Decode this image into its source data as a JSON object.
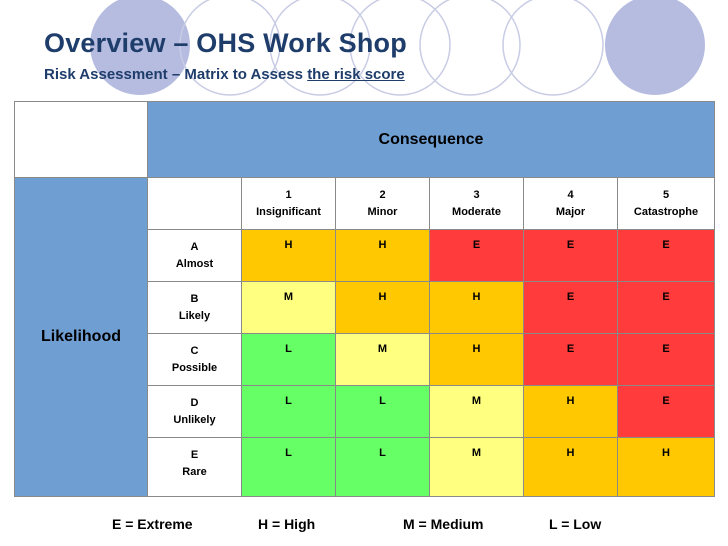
{
  "title": "Overview – OHS Work Shop",
  "subtitle_prefix": "Risk Assessment – Matrix to Assess ",
  "subtitle_link": "the risk score",
  "consequence_label": "Consequence",
  "likelihood_label": "Likelihood",
  "consequences": [
    {
      "num": "1",
      "name": "Insignificant"
    },
    {
      "num": "2",
      "name": "Minor"
    },
    {
      "num": "3",
      "name": "Moderate"
    },
    {
      "num": "4",
      "name": "Major"
    },
    {
      "num": "5",
      "name": "Catastrophe"
    }
  ],
  "likelihoods": [
    {
      "letter": "A",
      "name": "Almost"
    },
    {
      "letter": "B",
      "name": "Likely"
    },
    {
      "letter": "C",
      "name": "Possible"
    },
    {
      "letter": "D",
      "name": "Unlikely"
    },
    {
      "letter": "E",
      "name": "Rare"
    }
  ],
  "matrix": [
    [
      "H",
      "H",
      "E",
      "E",
      "E"
    ],
    [
      "M",
      "H",
      "H",
      "E",
      "E"
    ],
    [
      "L",
      "M",
      "H",
      "E",
      "E"
    ],
    [
      "L",
      "L",
      "M",
      "H",
      "E"
    ],
    [
      "L",
      "L",
      "M",
      "H",
      "H"
    ]
  ],
  "rating_colors": {
    "E": "#ff3b3b",
    "H": "#ffc800",
    "M": "#ffff80",
    "L": "#66ff66"
  },
  "legend": [
    "E = Extreme",
    "H = High",
    "M = Medium",
    "L = Low"
  ]
}
